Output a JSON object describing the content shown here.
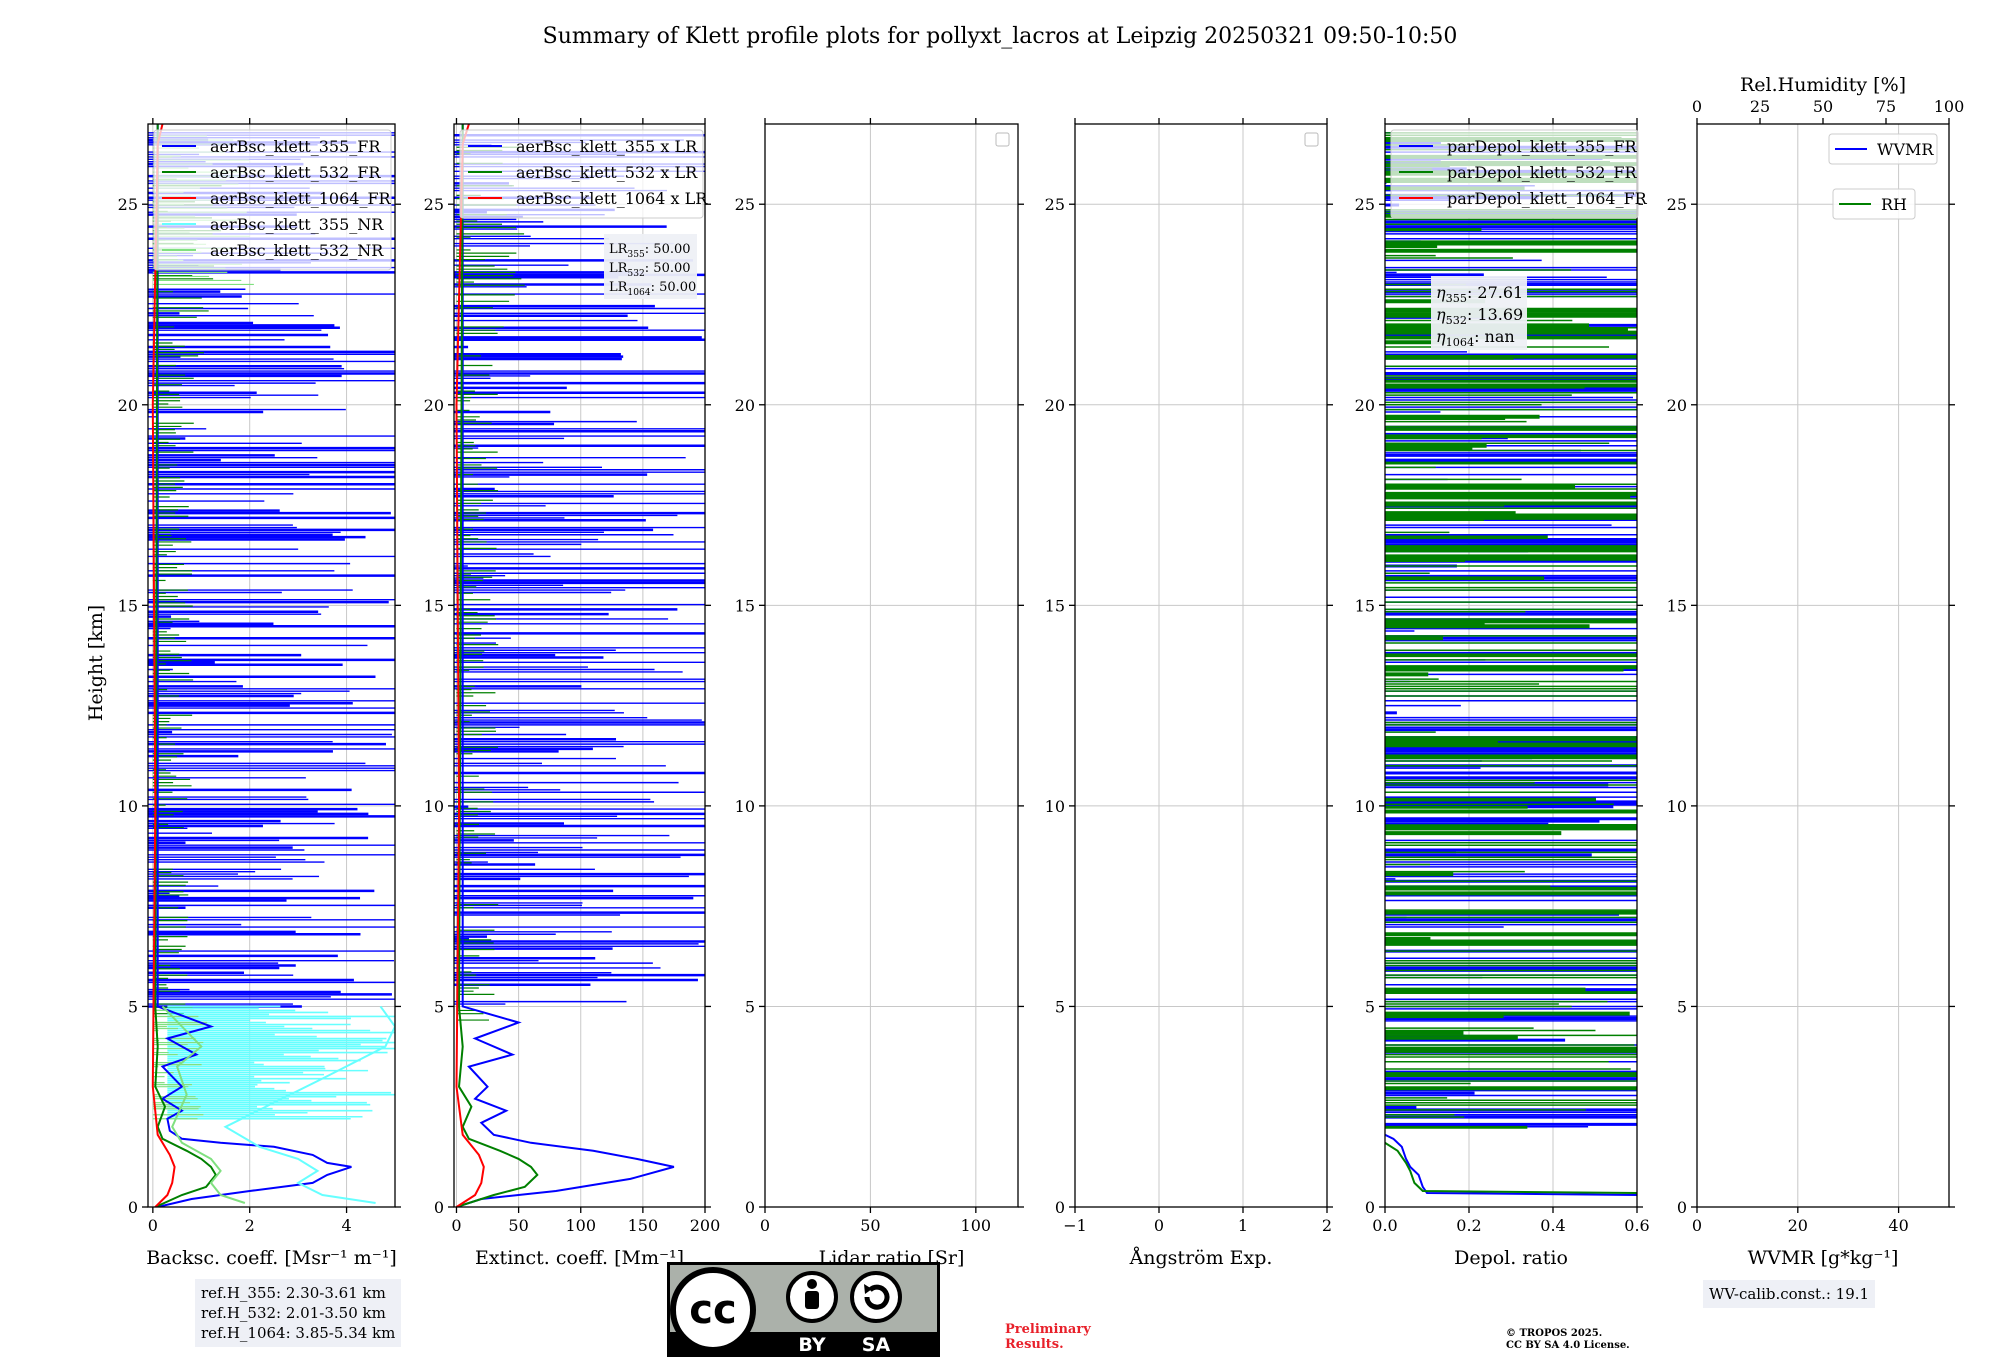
{
  "title": "Summary of Klett profile plots for pollyxt_lacros at Leipzig 20250321 09:50-10:50",
  "colors": {
    "c355": "#0000ff",
    "c532": "#008000",
    "c1064": "#ff0000",
    "c355nr": "#66ffff",
    "c532nr": "#80e080",
    "grid": "#c8c8c8",
    "infobox": "#eef0f6",
    "prelim": "#e8202a"
  },
  "ylabel": "Height [km]",
  "footer": {
    "ref_heights": [
      "ref.H_355: 2.30-3.61 km",
      "ref.H_532: 2.01-3.50 km",
      "ref.H_1064: 3.85-5.34 km"
    ],
    "license_badge": {
      "by": "BY",
      "sa": "SA",
      "cc": "cc"
    },
    "preliminary": [
      "Preliminary",
      "Results."
    ],
    "copyright": [
      "© TROPOS 2025.",
      "CC BY SA 4.0 License."
    ],
    "wv_calib": "WV-calib.const.: 19.1"
  },
  "chart_data": [
    {
      "type": "line",
      "id": "backscatter",
      "xlabel": "Backsc. coeff. [Msr⁻¹ m⁻¹]",
      "xlim": [
        -0.1,
        5
      ],
      "xticks": [
        0,
        2,
        4
      ],
      "ylim": [
        0,
        27
      ],
      "yticks": [
        0,
        5,
        10,
        15,
        20,
        25
      ],
      "grid": true,
      "legend_position": "top",
      "series": [
        {
          "name": "aerBsc_klett_355_FR",
          "color_key": "c355",
          "points": [
            [
              0.1,
              0
            ],
            [
              0.8,
              0.2
            ],
            [
              2.0,
              0.4
            ],
            [
              3.3,
              0.6
            ],
            [
              3.6,
              0.8
            ],
            [
              4.1,
              1.0
            ],
            [
              3.6,
              1.1
            ],
            [
              3.3,
              1.3
            ],
            [
              2.5,
              1.5
            ],
            [
              1.4,
              1.6
            ],
            [
              0.6,
              1.7
            ],
            [
              0.35,
              1.9
            ],
            [
              0.3,
              2.2
            ],
            [
              0.6,
              2.4
            ],
            [
              0.2,
              2.7
            ],
            [
              0.6,
              3.0
            ],
            [
              0.2,
              3.5
            ],
            [
              0.9,
              3.8
            ],
            [
              0.3,
              4.2
            ],
            [
              1.2,
              4.5
            ],
            [
              0.1,
              5.0
            ],
            [
              0.1,
              27
            ]
          ]
        },
        {
          "name": "aerBsc_klett_532_FR",
          "color_key": "c532",
          "points": [
            [
              0.05,
              0
            ],
            [
              0.6,
              0.3
            ],
            [
              1.1,
              0.5
            ],
            [
              1.3,
              0.8
            ],
            [
              1.2,
              1.0
            ],
            [
              1.0,
              1.2
            ],
            [
              0.7,
              1.4
            ],
            [
              0.2,
              1.7
            ],
            [
              0.1,
              2.0
            ],
            [
              0.25,
              2.5
            ],
            [
              0.05,
              3.0
            ],
            [
              0.1,
              4.0
            ],
            [
              0.05,
              5.0
            ],
            [
              0.1,
              27
            ]
          ]
        },
        {
          "name": "aerBsc_klett_1064_FR",
          "color_key": "c1064",
          "points": [
            [
              0.05,
              0
            ],
            [
              0.3,
              0.3
            ],
            [
              0.4,
              0.6
            ],
            [
              0.45,
              1.0
            ],
            [
              0.35,
              1.3
            ],
            [
              0.1,
              1.8
            ],
            [
              0.0,
              3.0
            ],
            [
              0.05,
              10
            ],
            [
              0.0,
              20
            ],
            [
              0.1,
              26.5
            ],
            [
              0.2,
              27
            ]
          ]
        },
        {
          "name": "aerBsc_klett_355_NR",
          "color_key": "c355nr",
          "points": [
            [
              4.6,
              0.1
            ],
            [
              3.5,
              0.3
            ],
            [
              3.0,
              0.6
            ],
            [
              3.4,
              0.9
            ],
            [
              3.0,
              1.2
            ],
            [
              2.2,
              1.5
            ],
            [
              1.5,
              2.0
            ],
            [
              2.5,
              2.6
            ],
            [
              3.5,
              3.2
            ],
            [
              4.8,
              4.0
            ],
            [
              5.0,
              4.5
            ],
            [
              4.7,
              5.0
            ]
          ]
        },
        {
          "name": "aerBsc_klett_532_NR",
          "color_key": "c532nr",
          "points": [
            [
              1.9,
              0.1
            ],
            [
              1.4,
              0.3
            ],
            [
              1.2,
              0.6
            ],
            [
              1.4,
              0.9
            ],
            [
              1.2,
              1.2
            ],
            [
              0.6,
              1.6
            ],
            [
              0.4,
              2.0
            ],
            [
              0.7,
              2.8
            ],
            [
              0.5,
              3.5
            ],
            [
              1.0,
              4.0
            ],
            [
              0.2,
              5.0
            ]
          ]
        }
      ]
    },
    {
      "type": "line",
      "id": "extinction",
      "xlabel": "Extinct. coeff. [Mm⁻¹]",
      "xlim": [
        -2,
        200
      ],
      "xticks": [
        0,
        50,
        100,
        150,
        200
      ],
      "ylim": [
        0,
        27
      ],
      "yticks": [
        0,
        5,
        10,
        15,
        20,
        25
      ],
      "grid": true,
      "legend_position": "top",
      "annotation": [
        [
          "LR",
          "355",
          ": 50.00"
        ],
        [
          "LR",
          "532",
          ": 50.00"
        ],
        [
          "LR",
          "1064",
          ": 50.00"
        ]
      ],
      "series": [
        {
          "name": "aerBsc_klett_355 x LR",
          "color_key": "c355",
          "points": [
            [
              0,
              0
            ],
            [
              20,
              0.2
            ],
            [
              80,
              0.4
            ],
            [
              140,
              0.7
            ],
            [
              175,
              1.0
            ],
            [
              145,
              1.2
            ],
            [
              110,
              1.4
            ],
            [
              60,
              1.6
            ],
            [
              30,
              1.8
            ],
            [
              20,
              2.1
            ],
            [
              40,
              2.4
            ],
            [
              15,
              2.7
            ],
            [
              25,
              3.0
            ],
            [
              10,
              3.5
            ],
            [
              45,
              3.8
            ],
            [
              15,
              4.2
            ],
            [
              50,
              4.6
            ],
            [
              5,
              5.0
            ],
            [
              5,
              27
            ]
          ]
        },
        {
          "name": "aerBsc_klett_532 x LR",
          "color_key": "c532",
          "points": [
            [
              0,
              0
            ],
            [
              30,
              0.3
            ],
            [
              55,
              0.5
            ],
            [
              65,
              0.8
            ],
            [
              60,
              1.0
            ],
            [
              50,
              1.2
            ],
            [
              35,
              1.4
            ],
            [
              10,
              1.7
            ],
            [
              5,
              2.0
            ],
            [
              12,
              2.5
            ],
            [
              2,
              3.0
            ],
            [
              5,
              4.0
            ],
            [
              2,
              5.0
            ],
            [
              5,
              27
            ]
          ]
        },
        {
          "name": "aerBsc_klett_1064 x LR",
          "color_key": "c1064",
          "points": [
            [
              0,
              0
            ],
            [
              15,
              0.3
            ],
            [
              20,
              0.6
            ],
            [
              22,
              1.0
            ],
            [
              18,
              1.3
            ],
            [
              5,
              1.8
            ],
            [
              0,
              3.0
            ],
            [
              2,
              10
            ],
            [
              0,
              20
            ],
            [
              5,
              26.5
            ],
            [
              10,
              27
            ]
          ]
        }
      ]
    },
    {
      "type": "line",
      "id": "lidar_ratio",
      "xlabel": "Lidar ratio [Sr]",
      "xlim": [
        0,
        120
      ],
      "xticks": [
        0,
        50,
        100
      ],
      "ylim": [
        0,
        27
      ],
      "yticks": [
        0,
        5,
        10,
        15,
        20,
        25
      ],
      "grid": true,
      "legend_position": "top-right",
      "series": []
    },
    {
      "type": "line",
      "id": "angstrom",
      "xlabel": "Ångström Exp.",
      "xlim": [
        -1,
        2
      ],
      "xticks": [
        -1,
        0,
        1,
        2
      ],
      "ylim": [
        0,
        27
      ],
      "yticks": [
        0,
        5,
        10,
        15,
        20,
        25
      ],
      "grid": true,
      "legend_position": "top-right",
      "series": []
    },
    {
      "type": "line",
      "id": "depol",
      "xlabel": "Depol. ratio",
      "xlim": [
        0,
        0.6
      ],
      "xticks": [
        0.0,
        0.2,
        0.4,
        0.6
      ],
      "ylim": [
        0,
        27
      ],
      "yticks": [
        0,
        5,
        10,
        15,
        20,
        25
      ],
      "grid": true,
      "legend_position": "top",
      "annotation": [
        [
          "η",
          "355",
          ": 27.61"
        ],
        [
          "η",
          "532",
          ": 13.69"
        ],
        [
          "η",
          "1064",
          ": nan"
        ]
      ],
      "series": [
        {
          "name": "parDepol_klett_355_FR",
          "color_key": "c355",
          "points": [
            [
              0.6,
              0.3
            ],
            [
              0.1,
              0.35
            ],
            [
              0.09,
              0.5
            ],
            [
              0.08,
              0.8
            ],
            [
              0.06,
              1.0
            ],
            [
              0.05,
              1.2
            ],
            [
              0.04,
              1.5
            ],
            [
              0.02,
              1.7
            ],
            [
              0.0,
              1.8
            ]
          ]
        },
        {
          "name": "parDepol_klett_532_FR",
          "color_key": "c532",
          "points": [
            [
              0.6,
              0.35
            ],
            [
              0.09,
              0.4
            ],
            [
              0.07,
              0.6
            ],
            [
              0.06,
              0.9
            ],
            [
              0.05,
              1.1
            ],
            [
              0.03,
              1.4
            ],
            [
              0.0,
              1.6
            ]
          ]
        },
        {
          "name": "parDepol_klett_1064_FR",
          "color_key": "c1064",
          "points": []
        }
      ]
    },
    {
      "type": "line",
      "id": "wvmr",
      "xlabel": "WVMR [g*kg⁻¹]",
      "xlim": [
        0,
        50
      ],
      "xticks": [
        0,
        20,
        40
      ],
      "x2label": "Rel.Humidity [%]",
      "x2lim": [
        0,
        100
      ],
      "x2ticks": [
        0,
        25,
        50,
        75,
        100
      ],
      "ylim": [
        0,
        27
      ],
      "yticks": [
        0,
        5,
        10,
        15,
        20,
        25
      ],
      "grid": true,
      "legend_position": "top-right",
      "series": [
        {
          "name": "WVMR",
          "color_key": "c355",
          "points": []
        },
        {
          "name": "RH",
          "color_key": "c532",
          "points": []
        }
      ]
    }
  ]
}
